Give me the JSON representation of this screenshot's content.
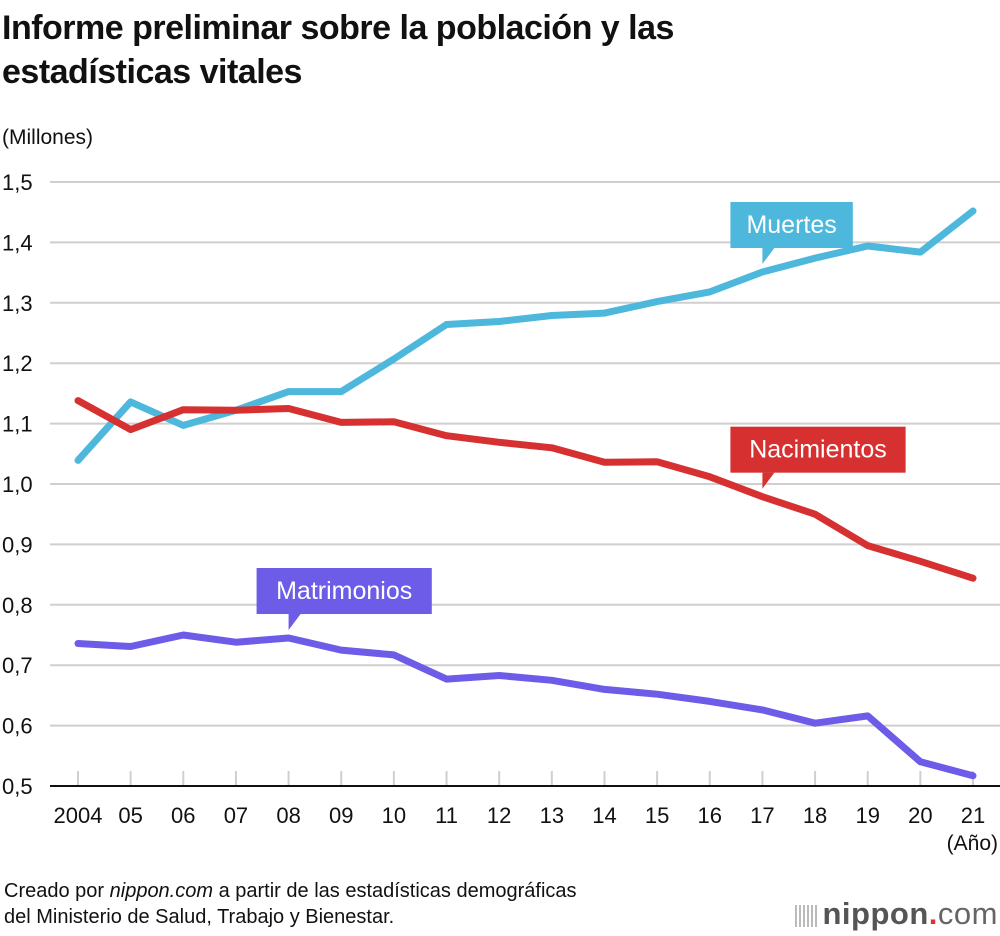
{
  "chart_data": {
    "type": "line",
    "title": "Informe preliminar sobre la población y las estadísticas vitales",
    "ylabel": "(Millones)",
    "xlabel": "(Año)",
    "ylim": [
      0.5,
      1.5
    ],
    "yticks": [
      "1,5",
      "1,4",
      "1,3",
      "1,2",
      "1,1",
      "1,0",
      "0,9",
      "0,8",
      "0,7",
      "0,6",
      "0,5"
    ],
    "ytick_values": [
      1.5,
      1.4,
      1.3,
      1.2,
      1.1,
      1.0,
      0.9,
      0.8,
      0.7,
      0.6,
      0.5
    ],
    "categories": [
      "2004",
      "05",
      "06",
      "07",
      "08",
      "09",
      "10",
      "11",
      "12",
      "13",
      "14",
      "15",
      "16",
      "17",
      "18",
      "19",
      "20",
      "21"
    ],
    "grid": true,
    "series": [
      {
        "name": "Muertes",
        "color": "#4db8dc",
        "label_index": 13,
        "values": [
          1.039,
          1.136,
          1.097,
          1.122,
          1.153,
          1.153,
          1.207,
          1.264,
          1.269,
          1.279,
          1.283,
          1.302,
          1.318,
          1.351,
          1.374,
          1.394,
          1.384,
          1.452
        ]
      },
      {
        "name": "Nacimientos",
        "color": "#d63031",
        "label_index": 13,
        "values": [
          1.138,
          1.09,
          1.123,
          1.122,
          1.125,
          1.102,
          1.103,
          1.08,
          1.069,
          1.06,
          1.036,
          1.037,
          1.012,
          0.979,
          0.95,
          0.898,
          0.872,
          0.844
        ]
      },
      {
        "name": "Matrimonios",
        "color": "#6c5ce7",
        "label_index": 4,
        "values": [
          0.736,
          0.731,
          0.75,
          0.738,
          0.745,
          0.725,
          0.717,
          0.677,
          0.683,
          0.675,
          0.66,
          0.652,
          0.64,
          0.626,
          0.604,
          0.616,
          0.54,
          0.517
        ]
      }
    ]
  },
  "source": {
    "prefix": "Creado por ",
    "site": "nippon.com",
    "suffix": " a partir de las estadísticas demográficas",
    "line2": "del Ministerio de Salud, Trabajo y Bienestar."
  },
  "logo": {
    "name": "nippon",
    "dot": ".",
    "tld": "com"
  }
}
